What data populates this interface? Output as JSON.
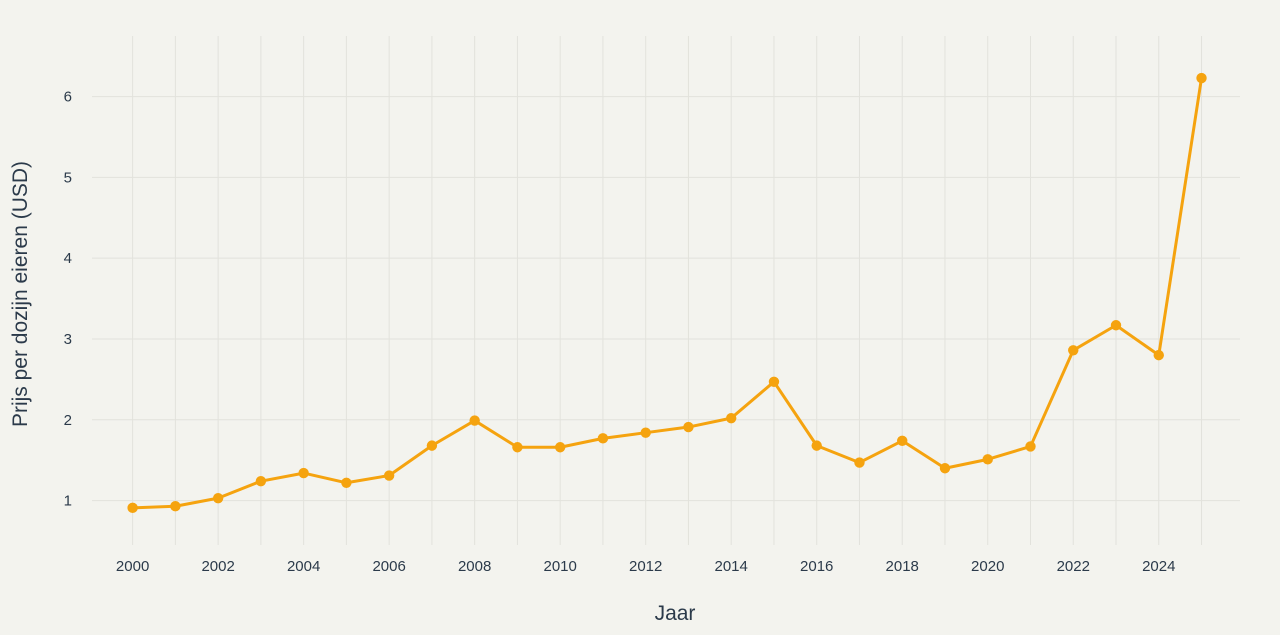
{
  "chart_data": {
    "type": "line",
    "xlabel": "Jaar",
    "ylabel": "Prijs per dozijn eieren (USD)",
    "x": [
      2000,
      2001,
      2002,
      2003,
      2004,
      2005,
      2006,
      2007,
      2008,
      2009,
      2010,
      2011,
      2012,
      2013,
      2014,
      2015,
      2016,
      2017,
      2018,
      2019,
      2020,
      2021,
      2022,
      2023,
      2024,
      2025
    ],
    "series": [
      {
        "values": [
          0.91,
          0.93,
          1.03,
          1.24,
          1.34,
          1.22,
          1.31,
          1.68,
          1.99,
          1.66,
          1.66,
          1.77,
          1.84,
          1.91,
          2.02,
          2.47,
          1.68,
          1.47,
          1.74,
          1.4,
          1.51,
          1.67,
          2.86,
          3.17,
          2.8,
          6.23
        ],
        "color": "#f5a30f"
      }
    ],
    "xticks": [
      "2000",
      "2002",
      "2004",
      "2006",
      "2008",
      "2010",
      "2012",
      "2014",
      "2016",
      "2018",
      "2020",
      "2022",
      "2024"
    ],
    "yticks": [
      "1",
      "2",
      "3",
      "4",
      "5",
      "6"
    ],
    "xlim": [
      1999.05,
      2025.9
    ],
    "ylim": [
      0.45,
      6.75
    ],
    "grid": true,
    "legend": "none"
  }
}
